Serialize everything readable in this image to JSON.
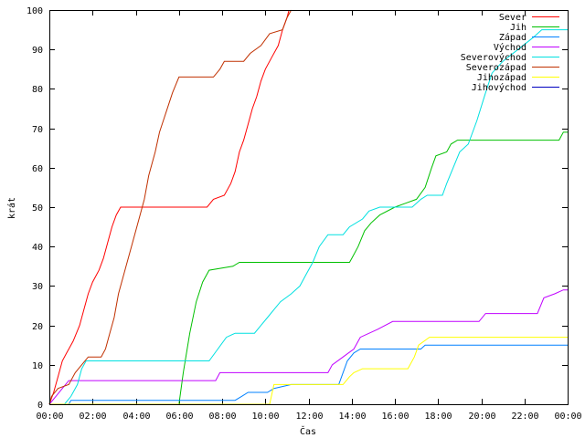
{
  "chart_data": {
    "type": "line",
    "xlabel": "Čas",
    "ylabel": "krát",
    "xlim": [
      0,
      24
    ],
    "ylim": [
      0,
      100
    ],
    "x_ticks": [
      {
        "value": 0,
        "label": "00:00"
      },
      {
        "value": 2,
        "label": "02:00"
      },
      {
        "value": 4,
        "label": "04:00"
      },
      {
        "value": 6,
        "label": "06:00"
      },
      {
        "value": 8,
        "label": "08:00"
      },
      {
        "value": 10,
        "label": "10:00"
      },
      {
        "value": 12,
        "label": "12:00"
      },
      {
        "value": 14,
        "label": "14:00"
      },
      {
        "value": 16,
        "label": "16:00"
      },
      {
        "value": 18,
        "label": "18:00"
      },
      {
        "value": 20,
        "label": "20:00"
      },
      {
        "value": 22,
        "label": "22:00"
      },
      {
        "value": 24,
        "label": "00:00"
      }
    ],
    "y_ticks": [
      0,
      10,
      20,
      30,
      40,
      50,
      60,
      70,
      80,
      90,
      100
    ],
    "legend_position": "top-right",
    "series": [
      {
        "name": "Sever",
        "color": "#ff0000",
        "points": [
          [
            0,
            0
          ],
          [
            0.2,
            3
          ],
          [
            0.4,
            7
          ],
          [
            0.6,
            11
          ],
          [
            0.8,
            13
          ],
          [
            1.1,
            16
          ],
          [
            1.4,
            20
          ],
          [
            1.6,
            24
          ],
          [
            1.8,
            28
          ],
          [
            2.0,
            31
          ],
          [
            2.3,
            34
          ],
          [
            2.5,
            37
          ],
          [
            2.7,
            41
          ],
          [
            2.9,
            45
          ],
          [
            3.1,
            48
          ],
          [
            3.3,
            50
          ],
          [
            7.3,
            50
          ],
          [
            7.6,
            52
          ],
          [
            8.1,
            53
          ],
          [
            8.4,
            56
          ],
          [
            8.6,
            59
          ],
          [
            8.8,
            64
          ],
          [
            9.0,
            67
          ],
          [
            9.2,
            71
          ],
          [
            9.4,
            75
          ],
          [
            9.6,
            78
          ],
          [
            9.8,
            82
          ],
          [
            10.0,
            85
          ],
          [
            10.3,
            88
          ],
          [
            10.6,
            91
          ],
          [
            10.8,
            95
          ],
          [
            11.0,
            98
          ],
          [
            11.1,
            100
          ]
        ]
      },
      {
        "name": "Jih",
        "color": "#00c000",
        "points": [
          [
            0,
            0
          ],
          [
            6.0,
            0
          ],
          [
            6.2,
            8
          ],
          [
            6.5,
            18
          ],
          [
            6.8,
            26
          ],
          [
            7.1,
            31
          ],
          [
            7.4,
            34
          ],
          [
            8.5,
            35
          ],
          [
            8.8,
            36
          ],
          [
            13.9,
            36
          ],
          [
            14.0,
            37
          ],
          [
            14.3,
            40
          ],
          [
            14.6,
            44
          ],
          [
            14.9,
            46
          ],
          [
            15.3,
            48
          ],
          [
            16.0,
            50
          ],
          [
            16.5,
            51
          ],
          [
            17.0,
            52
          ],
          [
            17.4,
            55
          ],
          [
            17.7,
            60
          ],
          [
            17.9,
            63
          ],
          [
            18.4,
            64
          ],
          [
            18.6,
            66
          ],
          [
            18.9,
            67
          ],
          [
            23.6,
            67
          ],
          [
            23.8,
            69
          ],
          [
            24,
            69
          ]
        ]
      },
      {
        "name": "Západ",
        "color": "#0080ff",
        "points": [
          [
            0,
            0
          ],
          [
            0.9,
            0
          ],
          [
            1.0,
            1
          ],
          [
            8.6,
            1
          ],
          [
            8.9,
            2
          ],
          [
            9.2,
            3
          ],
          [
            10.1,
            3
          ],
          [
            10.4,
            4
          ],
          [
            11.2,
            5
          ],
          [
            13.4,
            5
          ],
          [
            13.6,
            8
          ],
          [
            13.8,
            11
          ],
          [
            14.1,
            13
          ],
          [
            14.4,
            14
          ],
          [
            17.2,
            14
          ],
          [
            17.4,
            15
          ],
          [
            24,
            15
          ]
        ]
      },
      {
        "name": "Východ",
        "color": "#c000ff",
        "points": [
          [
            0,
            0
          ],
          [
            0.3,
            2
          ],
          [
            0.6,
            4
          ],
          [
            0.9,
            6
          ],
          [
            7.7,
            6
          ],
          [
            7.9,
            8
          ],
          [
            12.9,
            8
          ],
          [
            13.1,
            10
          ],
          [
            13.6,
            12
          ],
          [
            14.1,
            14
          ],
          [
            14.4,
            17
          ],
          [
            15.2,
            19
          ],
          [
            15.9,
            21
          ],
          [
            19.9,
            21
          ],
          [
            20.2,
            23
          ],
          [
            22.6,
            23
          ],
          [
            22.9,
            27
          ],
          [
            23.4,
            28
          ],
          [
            23.8,
            29
          ],
          [
            24,
            29
          ]
        ]
      },
      {
        "name": "Severovýchod",
        "color": "#00e0e0",
        "points": [
          [
            0,
            0
          ],
          [
            0.7,
            0
          ],
          [
            1.0,
            2
          ],
          [
            1.3,
            5
          ],
          [
            1.5,
            9
          ],
          [
            1.7,
            11
          ],
          [
            7.4,
            11
          ],
          [
            7.8,
            14
          ],
          [
            8.2,
            17
          ],
          [
            8.6,
            18
          ],
          [
            9.5,
            18
          ],
          [
            9.8,
            20
          ],
          [
            10.1,
            22
          ],
          [
            10.4,
            24
          ],
          [
            10.7,
            26
          ],
          [
            11.2,
            28
          ],
          [
            11.6,
            30
          ],
          [
            11.9,
            33
          ],
          [
            12.2,
            36
          ],
          [
            12.5,
            40
          ],
          [
            12.9,
            43
          ],
          [
            13.6,
            43
          ],
          [
            13.9,
            45
          ],
          [
            14.5,
            47
          ],
          [
            14.8,
            49
          ],
          [
            15.3,
            50
          ],
          [
            16.8,
            50
          ],
          [
            17.0,
            51
          ],
          [
            17.2,
            52
          ],
          [
            17.5,
            53
          ],
          [
            18.2,
            53
          ],
          [
            18.4,
            56
          ],
          [
            18.7,
            60
          ],
          [
            19.0,
            64
          ],
          [
            19.4,
            66
          ],
          [
            19.8,
            72
          ],
          [
            20.2,
            79
          ],
          [
            20.5,
            84
          ],
          [
            21.0,
            87
          ],
          [
            21.7,
            90
          ],
          [
            22.4,
            93
          ],
          [
            22.8,
            95
          ],
          [
            24,
            95
          ]
        ]
      },
      {
        "name": "Severozápad",
        "color": "#c03000",
        "points": [
          [
            0,
            0
          ],
          [
            0.1,
            2
          ],
          [
            0.4,
            4
          ],
          [
            0.9,
            5
          ],
          [
            1.2,
            8
          ],
          [
            1.5,
            10
          ],
          [
            1.8,
            12
          ],
          [
            2.4,
            12
          ],
          [
            2.6,
            14
          ],
          [
            2.8,
            18
          ],
          [
            3.0,
            22
          ],
          [
            3.2,
            28
          ],
          [
            3.5,
            34
          ],
          [
            3.8,
            40
          ],
          [
            4.1,
            46
          ],
          [
            4.4,
            52
          ],
          [
            4.6,
            58
          ],
          [
            4.9,
            64
          ],
          [
            5.1,
            69
          ],
          [
            5.4,
            74
          ],
          [
            5.7,
            79
          ],
          [
            6.0,
            83
          ],
          [
            7.6,
            83
          ],
          [
            7.9,
            85
          ],
          [
            8.1,
            87
          ],
          [
            9.0,
            87
          ],
          [
            9.3,
            89
          ],
          [
            9.8,
            91
          ],
          [
            10.2,
            94
          ],
          [
            10.8,
            95
          ],
          [
            11.0,
            98
          ],
          [
            11.2,
            100
          ]
        ]
      },
      {
        "name": "Jihozápad",
        "color": "#ffff00",
        "points": [
          [
            0,
            0
          ],
          [
            10.2,
            0
          ],
          [
            10.4,
            5
          ],
          [
            13.6,
            5
          ],
          [
            13.9,
            7
          ],
          [
            14.1,
            8
          ],
          [
            14.5,
            9
          ],
          [
            16.6,
            9
          ],
          [
            16.9,
            12
          ],
          [
            17.1,
            15
          ],
          [
            17.6,
            17
          ],
          [
            24,
            17
          ]
        ]
      },
      {
        "name": "Jihovýchod",
        "color": "#0000c0",
        "points": []
      }
    ]
  }
}
